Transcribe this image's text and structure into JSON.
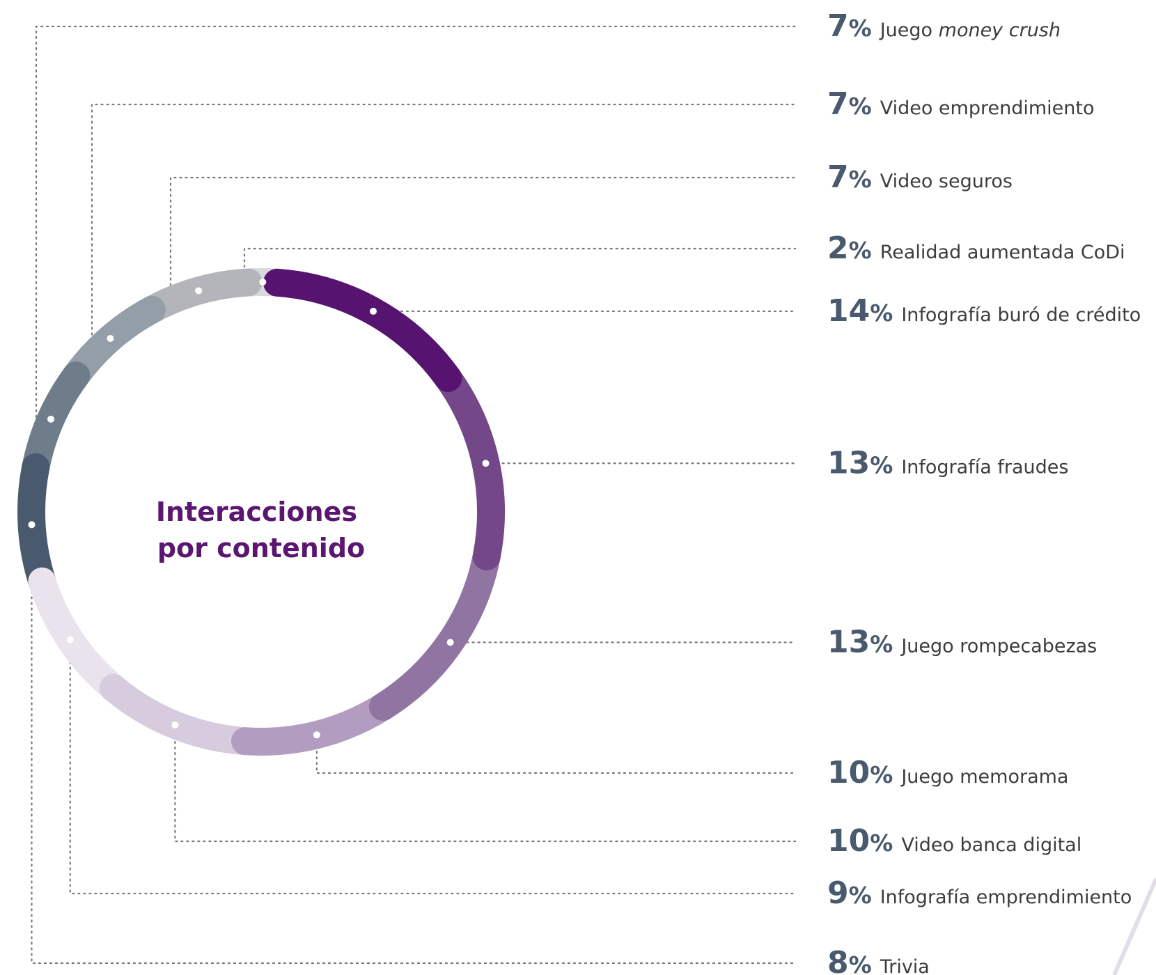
{
  "chart_data": {
    "type": "pie",
    "title": "Interacciones por contenido",
    "title_lines": [
      "Interacciones",
      "por contenido"
    ],
    "slices": [
      {
        "value": 14,
        "pct_label": "14",
        "label": "Infografía buró de crédito",
        "color": "#561470"
      },
      {
        "value": 13,
        "pct_label": "13",
        "label": "Infografía fraudes",
        "color": "#744788"
      },
      {
        "value": 13,
        "pct_label": "13",
        "label": "Juego rompecabezas",
        "color": "#9075a3"
      },
      {
        "value": 10,
        "pct_label": "10",
        "label": "Juego memorama",
        "color": "#b29dc0"
      },
      {
        "value": 10,
        "pct_label": "10",
        "label": "Video banca digital",
        "color": "#d7cbde"
      },
      {
        "value": 9,
        "pct_label": "9",
        "label": "Infografía emprendimiento",
        "color": "#e9e3ed"
      },
      {
        "value": 8,
        "pct_label": "8",
        "label": "Trivia",
        "color": "#4a5a6e"
      },
      {
        "value": 7,
        "pct_label": "7",
        "label": "Juego ",
        "label_em": "money crush",
        "color": "#6f7d8b"
      },
      {
        "value": 7,
        "pct_label": "7",
        "label": "Video emprendimiento",
        "color": "#939ea9"
      },
      {
        "value": 7,
        "pct_label": "7",
        "label": "Video seguros",
        "color": "#b4b5ba"
      },
      {
        "value": 2,
        "pct_label": "2",
        "label": "Realidad aumentada CoDi",
        "color": "#d9d9dd"
      }
    ],
    "percent_sign": "%",
    "legend_order": [
      7,
      8,
      9,
      10,
      0,
      1,
      2,
      3,
      4,
      5,
      6
    ]
  }
}
